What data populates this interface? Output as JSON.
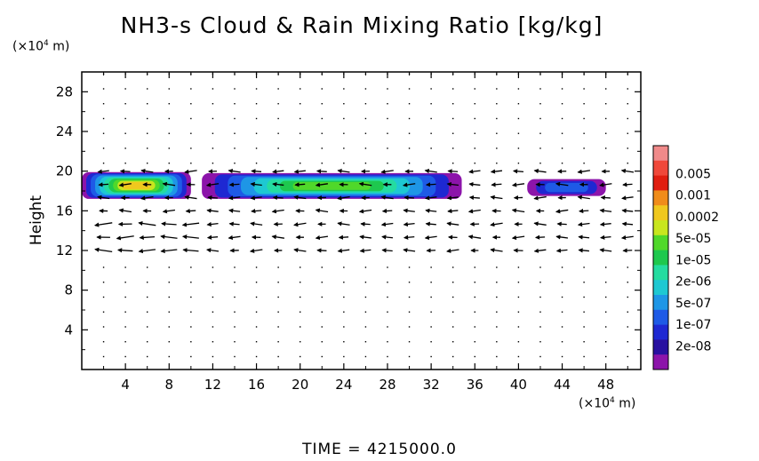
{
  "title": "NH3-s Cloud & Rain Mixing Ratio [kg/kg]",
  "footer": "TIME  =  4215000.0",
  "chart_data": {
    "type": "contour-vector",
    "title": "NH3-s Cloud & Rain Mixing Ratio [kg/kg]",
    "ylabel": "Height",
    "x_unit_label": {
      "prefix": "(×10",
      "exp": "4",
      "suffix": " m)"
    },
    "y_unit_label": {
      "prefix": "(×10",
      "exp": "4",
      "suffix": " m)"
    },
    "xlim": [
      0,
      51.2
    ],
    "ylim": [
      0,
      30
    ],
    "x_ticks": [
      4,
      8,
      12,
      16,
      20,
      24,
      28,
      32,
      36,
      40,
      44,
      48
    ],
    "y_ticks": [
      4,
      8,
      12,
      16,
      20,
      24,
      28
    ],
    "x_tick_labels": [
      "4",
      "8",
      "12",
      "16",
      "20",
      "24",
      "28",
      "32",
      "36",
      "40",
      "44",
      "48"
    ],
    "y_tick_labels": [
      "4",
      "8",
      "12",
      "16",
      "20",
      "24",
      "28"
    ],
    "colorbar": {
      "labels": [
        "0.005",
        "0.001",
        "0.0002",
        "5e-05",
        "1e-05",
        "2e-06",
        "5e-07",
        "1e-07",
        "2e-08"
      ],
      "colors": [
        "#f08a8a",
        "#f0483a",
        "#e01e10",
        "#f08c1a",
        "#f0c81e",
        "#c8e61e",
        "#50d82a",
        "#1ec84e",
        "#24dca0",
        "#1ec8d2",
        "#1e96e6",
        "#1e5ae6",
        "#1e28d2",
        "#2810a0",
        "#8c14aa"
      ]
    },
    "cloud_bands": [
      {
        "x_start": 0.0,
        "x_end": 10.0,
        "z_bottom": 17.2,
        "z_top": 19.9,
        "max_level": "5e-05"
      },
      {
        "x_start": 11.0,
        "x_end": 34.8,
        "z_bottom": 17.2,
        "z_top": 19.8,
        "max_level": "1e-05"
      },
      {
        "x_start": 40.8,
        "x_end": 48.0,
        "z_bottom": 17.5,
        "z_top": 19.2,
        "max_level": "1e-07"
      }
    ]
  }
}
